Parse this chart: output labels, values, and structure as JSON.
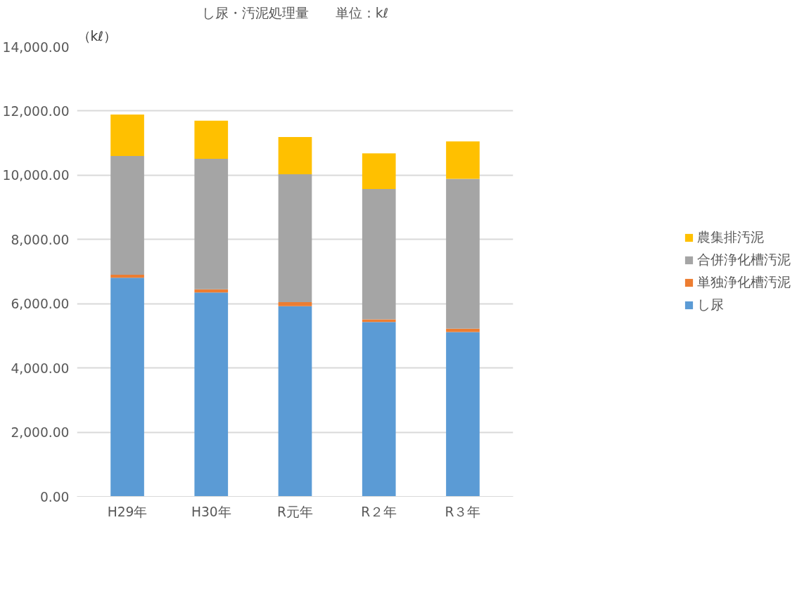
{
  "chart_data": {
    "type": "bar",
    "stacked": true,
    "title": "し尿・汚泥処理量　　単位：kℓ",
    "ylabel": "（kℓ）",
    "categories": [
      "H29年",
      "H30年",
      "R元年",
      "R２年",
      "R３年"
    ],
    "series": [
      {
        "name": "し尿",
        "color": "#5b9bd5",
        "values": [
          6810,
          6350,
          5920,
          5430,
          5120
        ]
      },
      {
        "name": "単独浄化槽汚泥",
        "color": "#ed7d31",
        "values": [
          90,
          100,
          130,
          80,
          100
        ]
      },
      {
        "name": "合併浄化槽汚泥",
        "color": "#a5a5a5",
        "values": [
          3700,
          4060,
          3980,
          4060,
          4670
        ]
      },
      {
        "name": "農集排汚泥",
        "color": "#ffc000",
        "values": [
          1290,
          1190,
          1160,
          1110,
          1160
        ]
      }
    ],
    "ylim": [
      0,
      14000
    ],
    "yticks": [
      {
        "value": 0,
        "label": "0.00"
      },
      {
        "value": 2000,
        "label": "2,000.00"
      },
      {
        "value": 4000,
        "label": "4,000.00"
      },
      {
        "value": 6000,
        "label": "6,000.00"
      },
      {
        "value": 8000,
        "label": "8,000.00"
      },
      {
        "value": 10000,
        "label": "10,000.00"
      },
      {
        "value": 12000,
        "label": "12,000.00"
      },
      {
        "value": 14000,
        "label": "14,000.00"
      }
    ],
    "grid": "y",
    "legend": "right"
  }
}
